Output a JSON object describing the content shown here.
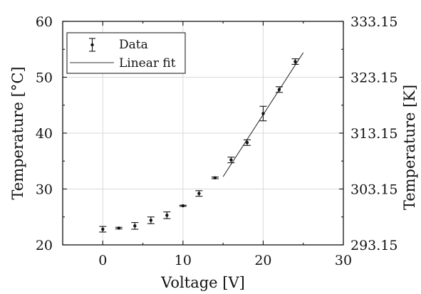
{
  "chart_data": {
    "type": "scatter",
    "xlabel": "Voltage [V]",
    "ylabel": "Temperature [°C]",
    "ylabel_right": "Temperature [K]",
    "xlim": [
      -5,
      30
    ],
    "ylim": [
      20,
      60
    ],
    "x_ticks": [
      "0",
      "10",
      "20",
      "30"
    ],
    "x_tick_values": [
      0,
      10,
      20,
      30
    ],
    "y_ticks": [
      "20",
      "30",
      "40",
      "50",
      "60"
    ],
    "y_tick_values": [
      20,
      30,
      40,
      50,
      60
    ],
    "y_right_ticks": [
      "293.15",
      "303.15",
      "313.15",
      "323.15",
      "333.15"
    ],
    "grid": true,
    "legend": {
      "placement": "top-left",
      "entries": [
        {
          "label": "Data",
          "kind": "errorbar"
        },
        {
          "label": "Linear fit",
          "kind": "line"
        }
      ]
    },
    "series": [
      {
        "name": "Data",
        "kind": "errorbar",
        "x": [
          0,
          2,
          4,
          6,
          8,
          10,
          12,
          14,
          16,
          18,
          20,
          22,
          24
        ],
        "y": [
          22.8,
          23.0,
          23.4,
          24.4,
          25.3,
          27.0,
          29.2,
          32.0,
          35.2,
          38.3,
          43.5,
          47.8,
          52.8
        ],
        "yerr": [
          0.5,
          0.15,
          0.6,
          0.6,
          0.6,
          0.1,
          0.5,
          0.15,
          0.5,
          0.5,
          1.3,
          0.5,
          0.5
        ]
      },
      {
        "name": "Linear fit",
        "kind": "line",
        "x": [
          15,
          25
        ],
        "y": [
          32.2,
          54.4
        ]
      }
    ],
    "colors": {
      "data": "#111111",
      "fit": "#333333",
      "grid": "#d9d9d9"
    }
  }
}
